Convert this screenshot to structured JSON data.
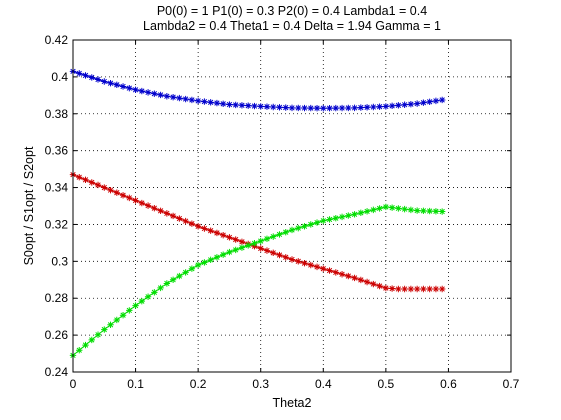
{
  "chart_data": {
    "type": "scatter",
    "title_lines": [
      "P0(0) = 1 P1(0) = 0.3 P2(0) = 0.4 Lambda1 = 0.4",
      "Lambda2 = 0.4 Theta1 = 0.4 Delta = 1.94 Gamma = 1"
    ],
    "xlabel": "Theta2",
    "ylabel": "S0opt / S1opt / S2opt",
    "xlim": [
      0,
      0.7
    ],
    "ylim": [
      0.24,
      0.42
    ],
    "x_ticks": [
      0,
      0.1,
      0.2,
      0.3,
      0.4,
      0.5,
      0.6,
      0.7
    ],
    "y_ticks": [
      0.24,
      0.26,
      0.28,
      0.3,
      0.32,
      0.34,
      0.36,
      0.38,
      0.4,
      0.42
    ],
    "grid": true,
    "marker": "*",
    "x_range": [
      0,
      0.59
    ],
    "x_step": 0.01,
    "series": [
      {
        "color": "#0000cc",
        "x": [
          0,
          0.05,
          0.1,
          0.15,
          0.2,
          0.25,
          0.3,
          0.35,
          0.4,
          0.45,
          0.5,
          0.55,
          0.59
        ],
        "y": [
          0.403,
          0.3975,
          0.393,
          0.3895,
          0.387,
          0.385,
          0.384,
          0.3832,
          0.383,
          0.3832,
          0.384,
          0.3855,
          0.3875
        ]
      },
      {
        "color": "#cc0000",
        "x": [
          0,
          0.05,
          0.1,
          0.15,
          0.2,
          0.25,
          0.3,
          0.35,
          0.4,
          0.45,
          0.5,
          0.52,
          0.55,
          0.59
        ],
        "y": [
          0.347,
          0.34,
          0.333,
          0.326,
          0.319,
          0.313,
          0.307,
          0.301,
          0.296,
          0.291,
          0.2855,
          0.285,
          0.285,
          0.285
        ]
      },
      {
        "color": "#00dd00",
        "x": [
          0,
          0.05,
          0.1,
          0.15,
          0.2,
          0.25,
          0.3,
          0.35,
          0.4,
          0.45,
          0.5,
          0.55,
          0.59
        ],
        "y": [
          0.249,
          0.263,
          0.276,
          0.288,
          0.298,
          0.305,
          0.311,
          0.317,
          0.322,
          0.3255,
          0.3295,
          0.3275,
          0.327
        ]
      }
    ]
  }
}
